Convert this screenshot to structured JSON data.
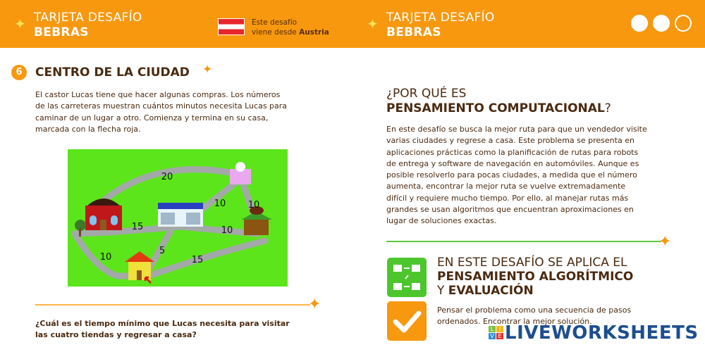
{
  "header": {
    "left_title_line1": "TARJETA DESAFÍO",
    "left_title_line2": "BEBRAS",
    "origin_line1": "Este desafío",
    "origin_line2_prefix": "viene desde ",
    "origin_country": "Austria",
    "right_title_line1": "TARJETA DESAFÍO",
    "right_title_line2": "BEBRAS",
    "difficulty_filled": 2,
    "difficulty_total": 3
  },
  "task": {
    "number": "6",
    "title": "CENTRO DE LA CIUDAD",
    "description": [
      "El castor Lucas tiene que hacer algunas compras. Los números",
      "de las carreteras muestran cuántos minutos necesita Lucas para",
      "caminar de un lugar a otro. Comienza y termina en su casa,",
      "marcada con la flecha roja."
    ],
    "map_labels": [
      "20",
      "15",
      "10",
      "10",
      "10",
      "5",
      "15",
      "10"
    ],
    "question": [
      "¿Cuál es el tiempo mínimo que Lucas necesita para visitar",
      "las cuatro tiendas y regresar a casa?"
    ]
  },
  "why": {
    "title_line1": "¿POR QUÉ ES",
    "title_bold": "PENSAMIENTO COMPUTACIONAL",
    "title_end": "?",
    "paragraph": [
      "En este desafío se busca la mejor ruta para que un vendedor visite",
      "varias ciudades y regrese a casa. Este problema se presenta en",
      "aplicaciones prácticas como la planificación de rutas para robots",
      "de entrega y software de navegación en automóviles. Aunque es",
      "posible resolverlo para pocas ciudades, a medida que el número",
      "aumenta, encontrar la mejor ruta se vuelve extremadamente",
      "difícil y requiere mucho tiempo. Por ello, al manejar rutas más",
      "grandes se usan algoritmos que encuentran aproximaciones en",
      "lugar de soluciones exactas."
    ]
  },
  "skills": {
    "line1": "EN ESTE DESAFÍO SE APLICA EL",
    "line2_bold": "PENSAMIENTO ALGORÍTMICO",
    "line3_prefix": "Y ",
    "line3_bold": "EVALUACIÓN",
    "desc": [
      "Pensar el problema como una secuencia de pasos",
      "ordenados. Encontrar la mejor solución."
    ]
  },
  "watermark": {
    "text": "LIVEWORKSHEETS",
    "badge": [
      "L",
      "I",
      "V",
      "E"
    ]
  },
  "colors": {
    "orange": "#f7980f",
    "green": "#5cc93c",
    "brown": "#4a2a10",
    "map_green": "#5ce51a"
  }
}
